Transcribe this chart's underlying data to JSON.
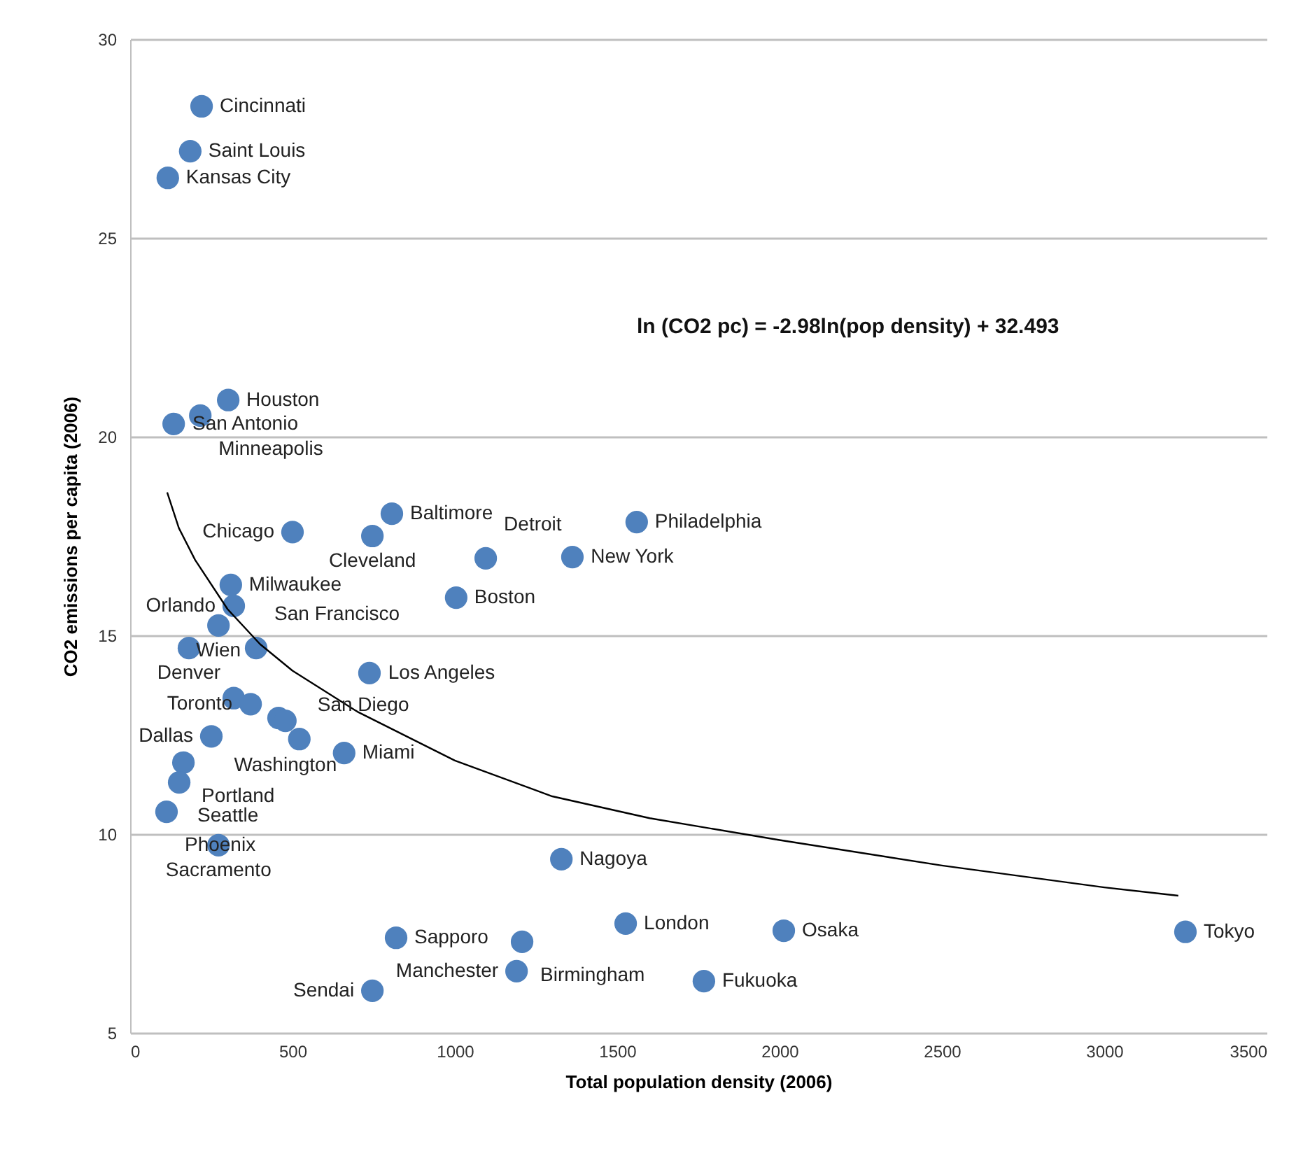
{
  "chart_data": {
    "type": "scatter",
    "xlabel": "Total population density (2006)",
    "ylabel": "CO2 emissions per capita (2006)",
    "xlim": [
      0,
      3500
    ],
    "xticks": [
      0,
      500,
      1000,
      1500,
      2000,
      2500,
      3000,
      3500
    ],
    "ylim": [
      5,
      30
    ],
    "yticks": [
      5,
      10,
      15,
      20,
      25,
      30
    ],
    "grid": "y",
    "annotations": [
      "ln (CO2 pc) = -2.98ln(pop density) + 32.493"
    ],
    "series": [
      {
        "marker": "circle",
        "color": "#4f81bd",
        "x": [
          220,
          185,
          116,
          302,
          216,
          134,
          500,
          806,
          746,
          1560,
          1095,
          1362,
          1004,
          310,
          319,
          272,
          181,
          388,
          737,
          319,
          371,
          457,
          478,
          521,
          659,
          250,
          164,
          151,
          112,
          272,
          1328,
          1526,
          2013,
          3250,
          819,
          1207,
          1190,
          1767,
          746
        ],
        "values": [
          28.31,
          27.18,
          26.51,
          20.92,
          20.53,
          20.32,
          17.6,
          18.06,
          17.5,
          17.85,
          16.94,
          16.97,
          15.95,
          16.27,
          15.74,
          15.25,
          14.68,
          14.68,
          14.05,
          13.42,
          13.27,
          12.92,
          12.85,
          12.39,
          12.04,
          12.46,
          11.8,
          11.3,
          10.56,
          9.72,
          9.37,
          7.75,
          7.57,
          7.54,
          7.39,
          7.29,
          6.55,
          6.3,
          6.06
        ],
        "value_labels": [
          "Cincinnati",
          "Saint Louis",
          "Kansas City",
          "Houston",
          "Minneapolis",
          "San Antonio",
          "Chicago",
          "Baltimore",
          "Cleveland",
          "Philadelphia",
          "Detroit",
          "New York",
          "Boston",
          "Milwaukee",
          "Orlando",
          "Wien",
          "Denver",
          "San Francisco",
          "Los Angeles",
          null,
          "Toronto",
          null,
          "Washington",
          "San Diego",
          "Miami",
          "Dallas",
          "Portland",
          "Seattle",
          "Phoenix",
          "Sacramento",
          "Nagoya",
          "London",
          "Osaka",
          "Tokyo",
          "Sapporo",
          "Birmingham",
          "Manchester",
          "Fukuoka",
          "Sendai"
        ]
      },
      {
        "type": "line",
        "color": "#000000",
        "x": [
          114,
          150,
          200,
          300,
          400,
          500,
          700,
          1000,
          1300,
          1600,
          2000,
          2500,
          3000,
          3228
        ],
        "values": [
          18.6,
          17.7,
          16.9,
          15.66,
          14.78,
          14.11,
          13.08,
          11.85,
          10.95,
          10.4,
          9.85,
          9.21,
          8.66,
          8.45
        ]
      }
    ]
  }
}
